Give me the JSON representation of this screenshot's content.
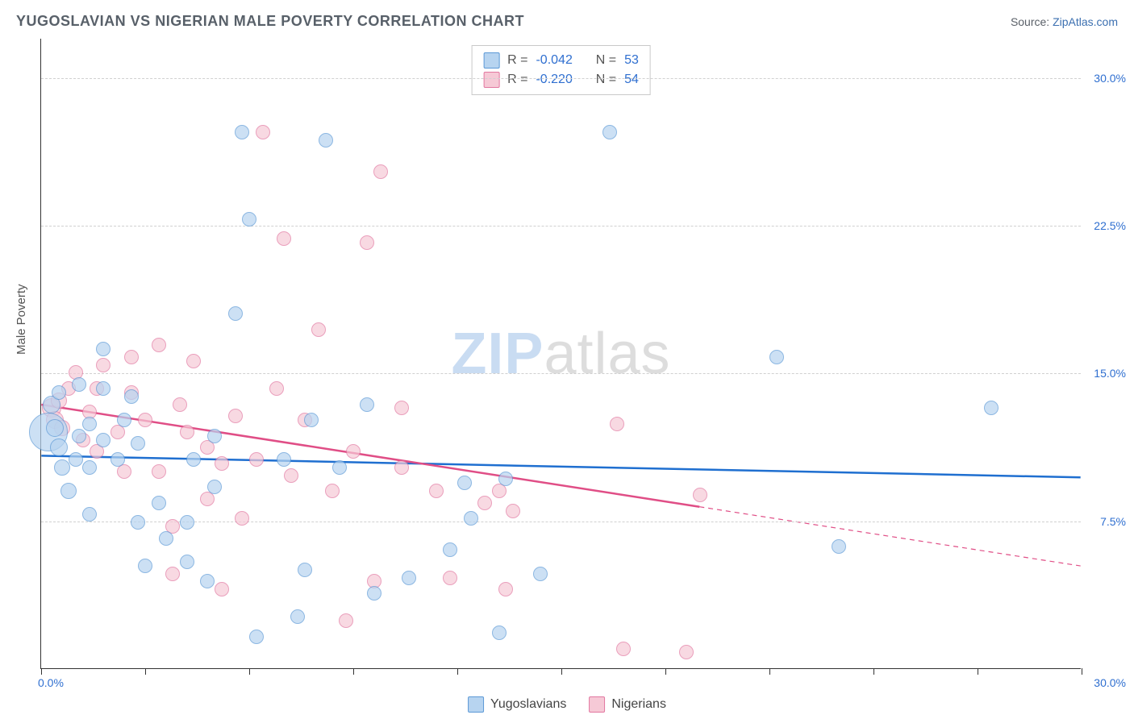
{
  "header": {
    "title": "YUGOSLAVIAN VS NIGERIAN MALE POVERTY CORRELATION CHART",
    "source_prefix": "Source: ",
    "source_link": "ZipAtlas.com"
  },
  "axes": {
    "y_title": "Male Poverty",
    "x_min": 0.0,
    "x_max": 30.0,
    "y_min": 0.0,
    "y_max": 32.0,
    "y_gridlines": [
      7.5,
      15.0,
      22.5,
      30.0
    ],
    "y_labels": [
      "7.5%",
      "15.0%",
      "22.5%",
      "30.0%"
    ],
    "x_label_min": "0.0%",
    "x_label_max": "30.0%",
    "x_ticks": [
      0,
      3,
      6,
      9,
      12,
      15,
      18,
      21,
      24,
      27,
      30
    ],
    "label_color": "#2f6fd0",
    "grid_color": "#d0d0d0",
    "axis_color": "#333333",
    "label_fontsize": 14
  },
  "watermark": {
    "zip": "ZIP",
    "atlas": "atlas"
  },
  "series": {
    "blue": {
      "name": "Yugoslavians",
      "fill": "#b7d4f0",
      "stroke": "#5c99d6",
      "opacity": 0.7,
      "R": "-0.042",
      "N": "53",
      "trend": {
        "y_at_x0": 10.8,
        "y_at_xmax": 9.7,
        "solid_until_x": 30.0,
        "color": "#1f6fd0",
        "width": 2.5
      },
      "points": [
        {
          "x": 0.2,
          "y": 12.0,
          "r": 24
        },
        {
          "x": 0.3,
          "y": 13.4,
          "r": 11
        },
        {
          "x": 0.4,
          "y": 12.2,
          "r": 11
        },
        {
          "x": 0.5,
          "y": 11.2,
          "r": 11
        },
        {
          "x": 0.6,
          "y": 10.2,
          "r": 10
        },
        {
          "x": 0.5,
          "y": 14.0,
          "r": 9
        },
        {
          "x": 0.8,
          "y": 9.0,
          "r": 10
        },
        {
          "x": 1.0,
          "y": 10.6,
          "r": 9
        },
        {
          "x": 1.1,
          "y": 11.8,
          "r": 9
        },
        {
          "x": 1.1,
          "y": 14.4,
          "r": 9
        },
        {
          "x": 1.4,
          "y": 12.4,
          "r": 9
        },
        {
          "x": 1.4,
          "y": 10.2,
          "r": 9
        },
        {
          "x": 1.4,
          "y": 7.8,
          "r": 9
        },
        {
          "x": 1.8,
          "y": 11.6,
          "r": 9
        },
        {
          "x": 1.8,
          "y": 14.2,
          "r": 9
        },
        {
          "x": 1.8,
          "y": 16.2,
          "r": 9
        },
        {
          "x": 2.2,
          "y": 10.6,
          "r": 9
        },
        {
          "x": 2.4,
          "y": 12.6,
          "r": 9
        },
        {
          "x": 2.6,
          "y": 13.8,
          "r": 9
        },
        {
          "x": 2.8,
          "y": 7.4,
          "r": 9
        },
        {
          "x": 2.8,
          "y": 11.4,
          "r": 9
        },
        {
          "x": 3.0,
          "y": 5.2,
          "r": 9
        },
        {
          "x": 3.4,
          "y": 8.4,
          "r": 9
        },
        {
          "x": 3.6,
          "y": 6.6,
          "r": 9
        },
        {
          "x": 4.2,
          "y": 5.4,
          "r": 9
        },
        {
          "x": 4.2,
          "y": 7.4,
          "r": 9
        },
        {
          "x": 4.4,
          "y": 10.6,
          "r": 9
        },
        {
          "x": 4.8,
          "y": 4.4,
          "r": 9
        },
        {
          "x": 5.0,
          "y": 9.2,
          "r": 9
        },
        {
          "x": 5.0,
          "y": 11.8,
          "r": 9
        },
        {
          "x": 5.6,
          "y": 18.0,
          "r": 9
        },
        {
          "x": 5.8,
          "y": 27.2,
          "r": 9
        },
        {
          "x": 6.0,
          "y": 22.8,
          "r": 9
        },
        {
          "x": 6.2,
          "y": 1.6,
          "r": 9
        },
        {
          "x": 7.0,
          "y": 10.6,
          "r": 9
        },
        {
          "x": 7.4,
          "y": 2.6,
          "r": 9
        },
        {
          "x": 7.6,
          "y": 5.0,
          "r": 9
        },
        {
          "x": 7.8,
          "y": 12.6,
          "r": 9
        },
        {
          "x": 8.2,
          "y": 26.8,
          "r": 9
        },
        {
          "x": 8.6,
          "y": 10.2,
          "r": 9
        },
        {
          "x": 9.4,
          "y": 13.4,
          "r": 9
        },
        {
          "x": 9.6,
          "y": 3.8,
          "r": 9
        },
        {
          "x": 10.6,
          "y": 4.6,
          "r": 9
        },
        {
          "x": 11.8,
          "y": 6.0,
          "r": 9
        },
        {
          "x": 12.2,
          "y": 9.4,
          "r": 9
        },
        {
          "x": 12.4,
          "y": 7.6,
          "r": 9
        },
        {
          "x": 13.2,
          "y": 1.8,
          "r": 9
        },
        {
          "x": 13.4,
          "y": 9.6,
          "r": 9
        },
        {
          "x": 14.4,
          "y": 4.8,
          "r": 9
        },
        {
          "x": 16.4,
          "y": 27.2,
          "r": 9
        },
        {
          "x": 21.2,
          "y": 15.8,
          "r": 9
        },
        {
          "x": 23.0,
          "y": 6.2,
          "r": 9
        },
        {
          "x": 27.4,
          "y": 13.2,
          "r": 9
        }
      ]
    },
    "pink": {
      "name": "Nigerians",
      "fill": "#f6c9d6",
      "stroke": "#e277a0",
      "opacity": 0.7,
      "R": "-0.220",
      "N": "54",
      "trend": {
        "y_at_x0": 13.4,
        "y_at_xmax": 5.2,
        "solid_until_x": 19.0,
        "color": "#e04e86",
        "width": 2.5
      },
      "points": [
        {
          "x": 0.3,
          "y": 13.2,
          "r": 12
        },
        {
          "x": 0.4,
          "y": 12.6,
          "r": 11
        },
        {
          "x": 0.5,
          "y": 13.6,
          "r": 10
        },
        {
          "x": 0.6,
          "y": 12.2,
          "r": 10
        },
        {
          "x": 0.8,
          "y": 14.2,
          "r": 9
        },
        {
          "x": 1.0,
          "y": 15.0,
          "r": 9
        },
        {
          "x": 1.2,
          "y": 11.6,
          "r": 9
        },
        {
          "x": 1.4,
          "y": 13.0,
          "r": 9
        },
        {
          "x": 1.6,
          "y": 14.2,
          "r": 9
        },
        {
          "x": 1.6,
          "y": 11.0,
          "r": 9
        },
        {
          "x": 1.8,
          "y": 15.4,
          "r": 9
        },
        {
          "x": 2.2,
          "y": 12.0,
          "r": 9
        },
        {
          "x": 2.4,
          "y": 10.0,
          "r": 9
        },
        {
          "x": 2.6,
          "y": 14.0,
          "r": 9
        },
        {
          "x": 2.6,
          "y": 15.8,
          "r": 9
        },
        {
          "x": 3.0,
          "y": 12.6,
          "r": 9
        },
        {
          "x": 3.4,
          "y": 10.0,
          "r": 9
        },
        {
          "x": 3.4,
          "y": 16.4,
          "r": 9
        },
        {
          "x": 3.8,
          "y": 4.8,
          "r": 9
        },
        {
          "x": 3.8,
          "y": 7.2,
          "r": 9
        },
        {
          "x": 4.0,
          "y": 13.4,
          "r": 9
        },
        {
          "x": 4.2,
          "y": 12.0,
          "r": 9
        },
        {
          "x": 4.4,
          "y": 15.6,
          "r": 9
        },
        {
          "x": 4.8,
          "y": 8.6,
          "r": 9
        },
        {
          "x": 4.8,
          "y": 11.2,
          "r": 9
        },
        {
          "x": 5.2,
          "y": 10.4,
          "r": 9
        },
        {
          "x": 5.2,
          "y": 4.0,
          "r": 9
        },
        {
          "x": 5.6,
          "y": 12.8,
          "r": 9
        },
        {
          "x": 5.8,
          "y": 7.6,
          "r": 9
        },
        {
          "x": 6.2,
          "y": 10.6,
          "r": 9
        },
        {
          "x": 6.4,
          "y": 27.2,
          "r": 9
        },
        {
          "x": 6.8,
          "y": 14.2,
          "r": 9
        },
        {
          "x": 7.0,
          "y": 21.8,
          "r": 9
        },
        {
          "x": 7.2,
          "y": 9.8,
          "r": 9
        },
        {
          "x": 7.6,
          "y": 12.6,
          "r": 9
        },
        {
          "x": 8.0,
          "y": 17.2,
          "r": 9
        },
        {
          "x": 8.4,
          "y": 9.0,
          "r": 9
        },
        {
          "x": 8.8,
          "y": 2.4,
          "r": 9
        },
        {
          "x": 9.0,
          "y": 11.0,
          "r": 9
        },
        {
          "x": 9.4,
          "y": 21.6,
          "r": 9
        },
        {
          "x": 9.6,
          "y": 4.4,
          "r": 9
        },
        {
          "x": 9.8,
          "y": 25.2,
          "r": 9
        },
        {
          "x": 10.4,
          "y": 10.2,
          "r": 9
        },
        {
          "x": 10.4,
          "y": 13.2,
          "r": 9
        },
        {
          "x": 11.4,
          "y": 9.0,
          "r": 9
        },
        {
          "x": 11.8,
          "y": 4.6,
          "r": 9
        },
        {
          "x": 12.8,
          "y": 8.4,
          "r": 9
        },
        {
          "x": 13.2,
          "y": 9.0,
          "r": 9
        },
        {
          "x": 13.4,
          "y": 4.0,
          "r": 9
        },
        {
          "x": 13.6,
          "y": 8.0,
          "r": 9
        },
        {
          "x": 16.6,
          "y": 12.4,
          "r": 9
        },
        {
          "x": 16.8,
          "y": 1.0,
          "r": 9
        },
        {
          "x": 19.0,
          "y": 8.8,
          "r": 9
        },
        {
          "x": 18.6,
          "y": 0.8,
          "r": 9
        }
      ]
    }
  },
  "stat_box": {
    "R_label": "R =",
    "N_label": "N ="
  },
  "legend": {
    "label1": "Yugoslavians",
    "label2": "Nigerians"
  }
}
